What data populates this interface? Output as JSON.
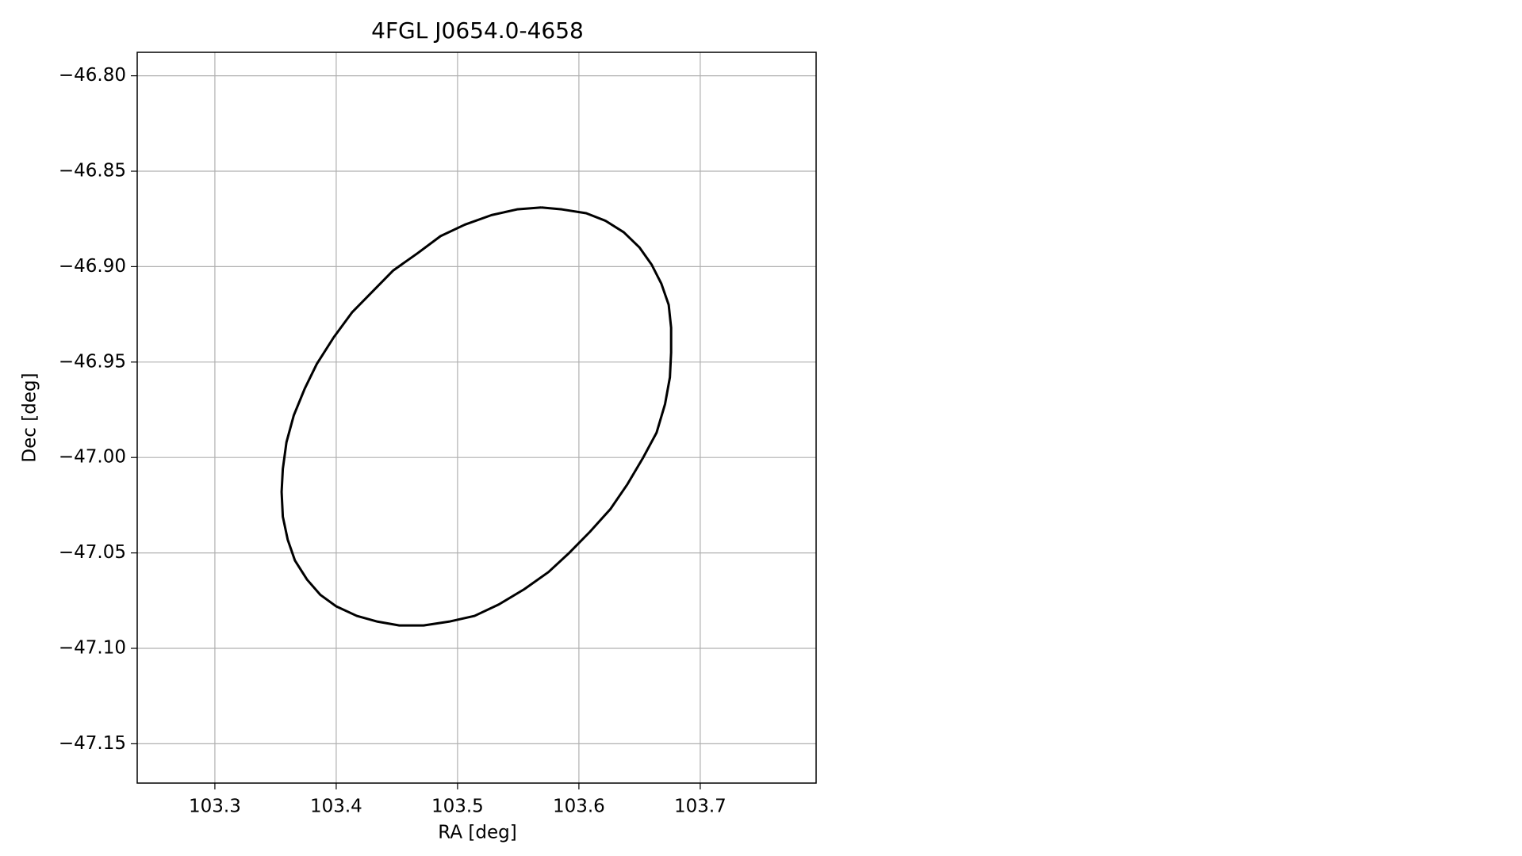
{
  "chart_data": {
    "type": "line",
    "title": "4FGL J0654.0-4658",
    "xlabel": "RA [deg]",
    "ylabel": "Dec [deg]",
    "grid": true,
    "xlim": [
      103.236,
      103.7955
    ],
    "ylim": [
      -47.1706,
      -46.7877
    ],
    "xticks": [
      103.3,
      103.4,
      103.5,
      103.6,
      103.7
    ],
    "yticks": [
      {
        "value": -46.8,
        "label": "−46.80"
      },
      {
        "value": -46.85,
        "label": "−46.85"
      },
      {
        "value": -46.9,
        "label": "−46.90"
      },
      {
        "value": -46.95,
        "label": "−46.95"
      },
      {
        "value": -47.0,
        "label": "−47.00"
      },
      {
        "value": -47.05,
        "label": "−47.05"
      },
      {
        "value": -47.1,
        "label": "−47.10"
      },
      {
        "value": -47.15,
        "label": "−47.15"
      }
    ],
    "series": [
      {
        "color": "#000000",
        "x": [
          103.569,
          103.586,
          103.606,
          103.622,
          103.637,
          103.65,
          103.66,
          103.668,
          103.674,
          103.676,
          103.676,
          103.675,
          103.671,
          103.664,
          103.653,
          103.64,
          103.626,
          103.609,
          103.592,
          103.575,
          103.555,
          103.534,
          103.514,
          103.493,
          103.472,
          103.452,
          103.434,
          103.417,
          103.4,
          103.387,
          103.376,
          103.366,
          103.36,
          103.356,
          103.355,
          103.356,
          103.359,
          103.365,
          103.374,
          103.384,
          103.398,
          103.413,
          103.43,
          103.447,
          103.467,
          103.486,
          103.506,
          103.528,
          103.549,
          103.569
        ],
        "values": [
          -46.869,
          -46.87,
          -46.872,
          -46.876,
          -46.882,
          -46.89,
          -46.899,
          -46.909,
          -46.92,
          -46.932,
          -46.945,
          -46.958,
          -46.972,
          -46.987,
          -47.0,
          -47.014,
          -47.027,
          -47.039,
          -47.05,
          -47.06,
          -47.069,
          -47.077,
          -47.083,
          -47.086,
          -47.088,
          -47.088,
          -47.086,
          -47.083,
          -47.078,
          -47.072,
          -47.064,
          -47.054,
          -47.043,
          -47.031,
          -47.018,
          -47.006,
          -46.992,
          -46.978,
          -46.964,
          -46.951,
          -46.937,
          -46.924,
          -46.913,
          -46.902,
          -46.893,
          -46.884,
          -46.878,
          -46.873,
          -46.87,
          -46.869
        ]
      }
    ]
  }
}
